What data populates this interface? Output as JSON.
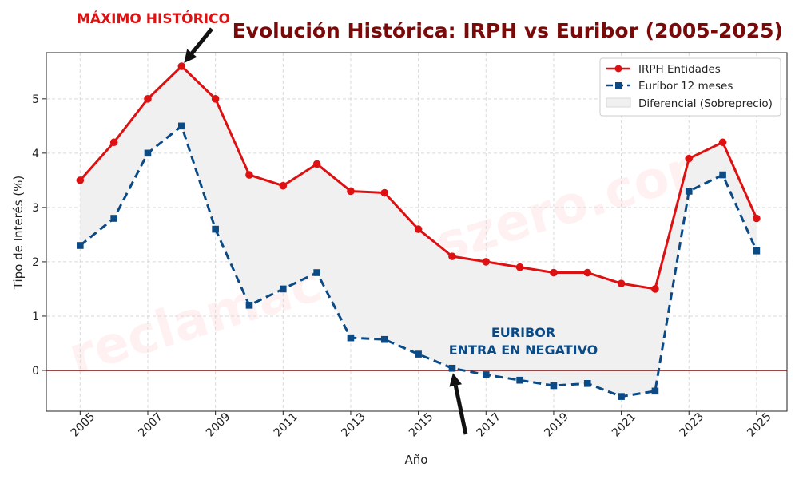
{
  "chart_data": {
    "type": "line",
    "title": "Evolución Histórica: IRPH vs Euribor (2005-2025)",
    "xlabel": "Año",
    "ylabel": "Tipo de Interés (%)",
    "xlim": [
      2004,
      2025.9
    ],
    "ylim": [
      -0.75,
      5.85
    ],
    "x_ticks": [
      2005,
      2007,
      2009,
      2011,
      2013,
      2015,
      2017,
      2019,
      2021,
      2023,
      2025
    ],
    "y_ticks": [
      0,
      1,
      2,
      3,
      4,
      5
    ],
    "grid": true,
    "legend_position": "top-right",
    "x": [
      2005,
      2006,
      2007,
      2008,
      2009,
      2010,
      2011,
      2012,
      2013,
      2014,
      2015,
      2016,
      2017,
      2018,
      2019,
      2020,
      2021,
      2022,
      2023,
      2024,
      2025
    ],
    "series": [
      {
        "name": "IRPH Entidades",
        "color": "#dd1111",
        "style": "solid",
        "marker": "circle",
        "values": [
          3.5,
          4.2,
          5.0,
          5.6,
          5.0,
          3.6,
          3.4,
          3.8,
          3.3,
          3.27,
          2.6,
          2.1,
          2.0,
          1.9,
          1.8,
          1.8,
          1.6,
          1.5,
          3.9,
          4.2,
          2.8
        ]
      },
      {
        "name": "Euríbor 12 meses",
        "color": "#0b4a85",
        "style": "dashed",
        "marker": "square",
        "values": [
          2.3,
          2.8,
          4.0,
          4.5,
          2.6,
          1.2,
          1.5,
          1.8,
          0.6,
          0.57,
          0.3,
          0.04,
          -0.08,
          -0.18,
          -0.28,
          -0.24,
          -0.48,
          -0.38,
          3.3,
          3.6,
          2.2
        ]
      }
    ],
    "fill_label": "Diferencial (Sobreprecio)",
    "zero_line_color": "#7a0a0a",
    "annotations": [
      {
        "text": "MÁXIMO HISTÓRICO",
        "point": [
          2008,
          5.6
        ],
        "color": "#dd1111"
      },
      {
        "text_line1": "EURIBOR",
        "text_line2": "ENTRA EN NEGATIVO",
        "point": [
          2016,
          0.04
        ],
        "color": "#0b4a85"
      }
    ],
    "watermark": "reclamacioneszero.com"
  }
}
